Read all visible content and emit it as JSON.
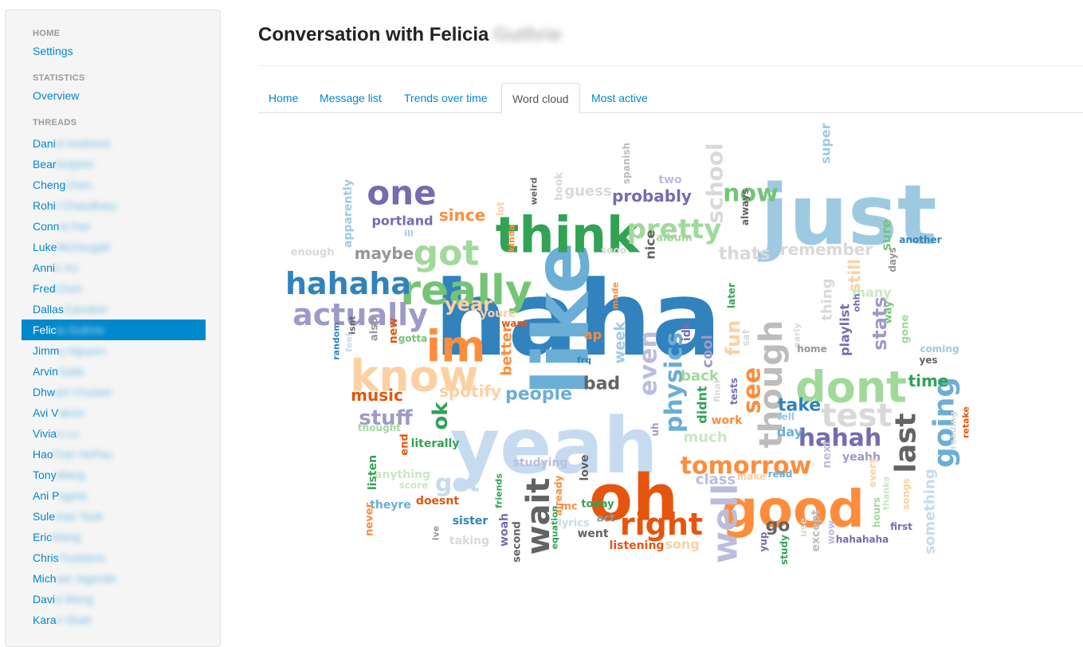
{
  "sidebar": {
    "home_header": "HOME",
    "settings": "Settings",
    "statistics_header": "STATISTICS",
    "overview": "Overview",
    "threads_header": "THREADS",
    "threads": [
      {
        "visible": "Dani",
        "hidden": "el Andrews"
      },
      {
        "visible": "Bear",
        "hidden": "Dolphin"
      },
      {
        "visible": "Cheng",
        "hidden": "Chen"
      },
      {
        "visible": "Rohi",
        "hidden": "t Chaudhary"
      },
      {
        "visible": "Conn",
        "hidden": "ie Fan"
      },
      {
        "visible": "Luke",
        "hidden": " McDougall"
      },
      {
        "visible": "Anni",
        "hidden": "e Xu"
      },
      {
        "visible": "Fred",
        "hidden": " Chen"
      },
      {
        "visible": "Dallas",
        "hidden": " Carraher"
      },
      {
        "visible": "Felic",
        "hidden": "ia Guthrie"
      },
      {
        "visible": "Jimm",
        "hidden": "y Nguyen"
      },
      {
        "visible": "Arvin",
        "hidden": " Galla"
      },
      {
        "visible": "Dhw",
        "hidden": "ani Chutani"
      },
      {
        "visible": "Avi V",
        "hidden": "aknin"
      },
      {
        "visible": "Vivia",
        "hidden": "n Lu"
      },
      {
        "visible": "Hao",
        "hidden": " Tran HoPau"
      },
      {
        "visible": "Tony",
        "hidden": " Wang"
      },
      {
        "visible": "Ani P",
        "hidden": "agnia"
      },
      {
        "visible": "Sule",
        "hidden": "man Tarik"
      },
      {
        "visible": "Eric",
        "hidden": " Wang"
      },
      {
        "visible": "Chris",
        "hidden": " Truebens"
      },
      {
        "visible": "Mich",
        "hidden": "ael Jagerski"
      },
      {
        "visible": "Davi",
        "hidden": "d Wong"
      },
      {
        "visible": "Kara",
        "hidden": "n Shah"
      }
    ],
    "active_index": 9
  },
  "page": {
    "title": "Conversation with Felicia",
    "title_hidden": "Guthrie"
  },
  "tabs": [
    {
      "label": "Home",
      "active": false
    },
    {
      "label": "Message list",
      "active": false
    },
    {
      "label": "Trends over time",
      "active": false
    },
    {
      "label": "Word cloud",
      "active": true
    },
    {
      "label": "Most active",
      "active": false
    }
  ],
  "colors": {
    "link": "#0088cc",
    "active_bg": "#0088cc",
    "cloud_blue": "#3182bd",
    "cloud_lightblue": "#9ecae1",
    "cloud_paleblue": "#c6dbef",
    "cloud_orange": "#e6550d",
    "cloud_lightorange": "#fd8d3c",
    "cloud_paleorange": "#fdd0a2",
    "cloud_green": "#31a354",
    "cloud_lightgreen": "#74c476",
    "cloud_palegreen": "#a1d99b",
    "cloud_purple": "#756bb1",
    "cloud_lightpurple": "#9e9ac8",
    "cloud_palepurple": "#bcbddc",
    "cloud_gray": "#636363",
    "cloud_lightgray": "#969696",
    "cloud_palegray": "#d9d9d9"
  },
  "word_cloud": [
    {
      "w": "haha",
      "c": "#3182bd",
      "s": 130,
      "r": 0
    },
    {
      "w": "just",
      "c": "#9ecae1",
      "s": 104,
      "r": 0
    },
    {
      "w": "yeah",
      "c": "#c6dbef",
      "s": 96,
      "r": 0
    },
    {
      "w": "like",
      "c": "#6baed6",
      "s": 96,
      "r": -90
    },
    {
      "w": "think",
      "c": "#31a354",
      "s": 62,
      "r": 0
    },
    {
      "w": "oh",
      "c": "#e6550d",
      "s": 80,
      "r": 0
    },
    {
      "w": "good",
      "c": "#fd8d3c",
      "s": 64,
      "r": 0
    },
    {
      "w": "really",
      "c": "#74c476",
      "s": 52,
      "r": 0
    },
    {
      "w": "know",
      "c": "#fdd0a2",
      "s": 54,
      "r": 0
    },
    {
      "w": "dont",
      "c": "#a1d99b",
      "s": 54,
      "r": 0
    },
    {
      "w": "im",
      "c": "#fd8d3c",
      "s": 54,
      "r": 0
    },
    {
      "w": "one",
      "c": "#756bb1",
      "s": 42,
      "r": 0
    },
    {
      "w": "got",
      "c": "#a1d99b",
      "s": 44,
      "r": 0
    },
    {
      "w": "hahaha",
      "c": "#3182bd",
      "s": 38,
      "r": 0
    },
    {
      "w": "actually",
      "c": "#9e9ac8",
      "s": 38,
      "r": 0
    },
    {
      "w": "pretty",
      "c": "#a1d99b",
      "s": 34,
      "r": 0
    },
    {
      "w": "right",
      "c": "#e6550d",
      "s": 38,
      "r": 0
    },
    {
      "w": "wait",
      "c": "#636363",
      "s": 40,
      "r": -90
    },
    {
      "w": "well",
      "c": "#bcbddc",
      "s": 44,
      "r": -90
    },
    {
      "w": "though",
      "c": "#bdbdbd",
      "s": 40,
      "r": -90
    },
    {
      "w": "test",
      "c": "#d9d9d9",
      "s": 40,
      "r": 0
    },
    {
      "w": "last",
      "c": "#636363",
      "s": 36,
      "r": -90
    },
    {
      "w": "going",
      "c": "#6baed6",
      "s": 36,
      "r": -90
    },
    {
      "w": "tomorrow",
      "c": "#fd8d3c",
      "s": 30,
      "r": 0
    },
    {
      "w": "physics",
      "c": "#6baed6",
      "s": 30,
      "r": -90
    },
    {
      "w": "even",
      "c": "#bcbddc",
      "s": 30,
      "r": -90
    },
    {
      "w": "see",
      "c": "#fd8d3c",
      "s": 30,
      "r": -90
    },
    {
      "w": "now",
      "c": "#74c476",
      "s": 30,
      "r": 0
    },
    {
      "w": "hahah",
      "c": "#756bb1",
      "s": 30,
      "r": 0
    },
    {
      "w": "get",
      "c": "#c6dbef",
      "s": 30,
      "r": 0
    },
    {
      "w": "school",
      "c": "#d9d9d9",
      "s": 28,
      "r": -90
    },
    {
      "w": "stuff",
      "c": "#9e9ac8",
      "s": 26,
      "r": 0
    },
    {
      "w": "take",
      "c": "#3182bd",
      "s": 22,
      "r": 0
    },
    {
      "w": "thats",
      "c": "#d9d9d9",
      "s": 22,
      "r": 0
    },
    {
      "w": "fun",
      "c": "#fdd0a2",
      "s": 24,
      "r": -90
    },
    {
      "w": "ok",
      "c": "#31a354",
      "s": 26,
      "r": -90
    },
    {
      "w": "people",
      "c": "#6baed6",
      "s": 22,
      "r": 0
    },
    {
      "w": "maybe",
      "c": "#969696",
      "s": 20,
      "r": 0
    },
    {
      "w": "probably",
      "c": "#756bb1",
      "s": 20,
      "r": 0
    },
    {
      "w": "remember",
      "c": "#d9d9d9",
      "s": 20,
      "r": 0
    },
    {
      "w": "year",
      "c": "#fdd0a2",
      "s": 24,
      "r": 0
    },
    {
      "w": "music",
      "c": "#e6550d",
      "s": 20,
      "r": 0
    },
    {
      "w": "spotify",
      "c": "#fdd0a2",
      "s": 20,
      "r": 0
    },
    {
      "w": "bad",
      "c": "#636363",
      "s": 22,
      "r": 0
    },
    {
      "w": "time",
      "c": "#31a354",
      "s": 20,
      "r": 0
    },
    {
      "w": "stats",
      "c": "#9e9ac8",
      "s": 24,
      "r": -90
    },
    {
      "w": "still",
      "c": "#fdd0a2",
      "s": 20,
      "r": -90
    },
    {
      "w": "since",
      "c": "#fd8d3c",
      "s": 20,
      "r": 0
    },
    {
      "w": "portland",
      "c": "#756bb1",
      "s": 16,
      "r": 0
    },
    {
      "w": "guess",
      "c": "#d9d9d9",
      "s": 18,
      "r": 0
    },
    {
      "w": "week",
      "c": "#9ecae1",
      "s": 18,
      "r": -90
    },
    {
      "w": "better",
      "c": "#fd8d3c",
      "s": 18,
      "r": -90
    },
    {
      "w": "class",
      "c": "#bcbddc",
      "s": 18,
      "r": 0
    },
    {
      "w": "back",
      "c": "#a1d99b",
      "s": 18,
      "r": 0
    },
    {
      "w": "much",
      "c": "#c7e9c0",
      "s": 18,
      "r": 0
    },
    {
      "w": "song",
      "c": "#fdd0a2",
      "s": 16,
      "r": 0
    },
    {
      "w": "cool",
      "c": "#9e9ac8",
      "s": 18,
      "r": -90
    },
    {
      "w": "thing",
      "c": "#d9d9d9",
      "s": 18,
      "r": -90
    },
    {
      "w": "many",
      "c": "#c7e9c0",
      "s": 16,
      "r": 0
    },
    {
      "w": "sure",
      "c": "#74c476",
      "s": 16,
      "r": -90
    },
    {
      "w": "playlist",
      "c": "#756bb1",
      "s": 16,
      "r": -90
    },
    {
      "w": "day",
      "c": "#6baed6",
      "s": 16,
      "r": 0
    },
    {
      "w": "go",
      "c": "#636363",
      "s": 22,
      "r": 0
    },
    {
      "w": "yeahh",
      "c": "#9e9ac8",
      "s": 14,
      "r": 0
    },
    {
      "w": "something",
      "c": "#c6dbef",
      "s": 18,
      "r": -90
    },
    {
      "w": "listening",
      "c": "#e6550d",
      "s": 14,
      "r": 0
    },
    {
      "w": "went",
      "c": "#636363",
      "s": 14,
      "r": 0
    },
    {
      "w": "studying",
      "c": "#bcbddc",
      "s": 14,
      "r": 0
    },
    {
      "w": "taking",
      "c": "#d9d9d9",
      "s": 14,
      "r": 0
    },
    {
      "w": "sister",
      "c": "#3182bd",
      "s": 14,
      "r": 0
    },
    {
      "w": "theyre",
      "c": "#6baed6",
      "s": 14,
      "r": 0
    },
    {
      "w": "doesnt",
      "c": "#e6550d",
      "s": 14,
      "r": 0
    },
    {
      "w": "literally",
      "c": "#31a354",
      "s": 14,
      "r": 0
    },
    {
      "w": "anything",
      "c": "#c7e9c0",
      "s": 14,
      "r": 0
    },
    {
      "w": "apparently",
      "c": "#9ecae1",
      "s": 14,
      "r": -90
    },
    {
      "w": "enough",
      "c": "#d9d9d9",
      "s": 13,
      "r": 0
    },
    {
      "w": "new",
      "c": "#e6550d",
      "s": 14,
      "r": -90
    },
    {
      "w": "also",
      "c": "#969696",
      "s": 13,
      "r": -90
    },
    {
      "w": "gotta",
      "c": "#74c476",
      "s": 12,
      "r": 0
    },
    {
      "w": "end",
      "c": "#e6550d",
      "s": 13,
      "r": -90
    },
    {
      "w": "listen",
      "c": "#31a354",
      "s": 14,
      "r": -90
    },
    {
      "w": "never",
      "c": "#fd8d3c",
      "s": 13,
      "r": -90
    },
    {
      "w": "thought",
      "c": "#a1d99b",
      "s": 12,
      "r": 0
    },
    {
      "w": "score",
      "c": "#c7e9c0",
      "s": 12,
      "r": 0
    },
    {
      "w": "woah",
      "c": "#756bb1",
      "s": 14,
      "r": -90
    },
    {
      "w": "second",
      "c": "#636363",
      "s": 13,
      "r": -90
    },
    {
      "w": "today",
      "c": "#31a354",
      "s": 13,
      "r": 0
    },
    {
      "w": "act",
      "c": "#969696",
      "s": 13,
      "r": 0
    },
    {
      "w": "lyrics",
      "c": "#c6dbef",
      "s": 13,
      "r": 0
    },
    {
      "w": "mc",
      "c": "#fd8d3c",
      "s": 13,
      "r": 0
    },
    {
      "w": "love",
      "c": "#636363",
      "s": 14,
      "r": -90
    },
    {
      "w": "already",
      "c": "#fd8d3c",
      "s": 12,
      "r": -90
    },
    {
      "w": "equation",
      "c": "#31a354",
      "s": 11,
      "r": -90
    },
    {
      "w": "friends",
      "c": "#31a354",
      "s": 11,
      "r": -90
    },
    {
      "w": "make",
      "c": "#fdd0a2",
      "s": 12,
      "r": 0
    },
    {
      "w": "read",
      "c": "#6baed6",
      "s": 12,
      "r": 0
    },
    {
      "w": "work",
      "c": "#fd8d3c",
      "s": 14,
      "r": 0
    },
    {
      "w": "tests",
      "c": "#756bb1",
      "s": 12,
      "r": -90
    },
    {
      "w": "didnt",
      "c": "#31a354",
      "s": 16,
      "r": -90
    },
    {
      "w": "uh",
      "c": "#9e9ac8",
      "s": 12,
      "r": -90
    },
    {
      "w": "idk",
      "c": "#756bb1",
      "s": 14,
      "r": -90
    },
    {
      "w": "ap",
      "c": "#fd8d3c",
      "s": 16,
      "r": 0
    },
    {
      "w": "want",
      "c": "#e6550d",
      "s": 12,
      "r": 0
    },
    {
      "w": "youre",
      "c": "#fdd0a2",
      "s": 14,
      "r": 0
    },
    {
      "w": "made",
      "c": "#fd8d3c",
      "s": 11,
      "r": -90
    },
    {
      "w": "sooo",
      "c": "#d9d9d9",
      "s": 12,
      "r": 0
    },
    {
      "w": "nice",
      "c": "#636363",
      "s": 16,
      "r": -90
    },
    {
      "w": "album",
      "c": "#a1d99b",
      "s": 13,
      "r": 0
    },
    {
      "w": "two",
      "c": "#bcbddc",
      "s": 14,
      "r": 0
    },
    {
      "w": "spanish",
      "c": "#bdbdbd",
      "s": 12,
      "r": -90
    },
    {
      "w": "book",
      "c": "#d9d9d9",
      "s": 13,
      "r": -90
    },
    {
      "w": "weird",
      "c": "#636363",
      "s": 11,
      "r": -90
    },
    {
      "w": "lot",
      "c": "#fdd0a2",
      "s": 12,
      "r": -90
    },
    {
      "w": "kinda",
      "c": "#fd8d3c",
      "s": 11,
      "r": -90
    },
    {
      "w": "always",
      "c": "#636363",
      "s": 12,
      "r": -90
    },
    {
      "w": "later",
      "c": "#31a354",
      "s": 12,
      "r": -90
    },
    {
      "w": "final",
      "c": "#d9d9d9",
      "s": 11,
      "r": -90
    },
    {
      "w": "sat",
      "c": "#d9d9d9",
      "s": 12,
      "r": -90
    },
    {
      "w": "early",
      "c": "#d9d9d9",
      "s": 11,
      "r": -90
    },
    {
      "w": "home",
      "c": "#969696",
      "s": 12,
      "r": 0
    },
    {
      "w": "tell",
      "c": "#9ecae1",
      "s": 12,
      "r": 0
    },
    {
      "w": "ohh",
      "c": "#756bb1",
      "s": 11,
      "r": -90
    },
    {
      "w": "way",
      "c": "#74c476",
      "s": 13,
      "r": -90
    },
    {
      "w": "gone",
      "c": "#a1d99b",
      "s": 13,
      "r": -90
    },
    {
      "w": "days",
      "c": "#969696",
      "s": 12,
      "r": -90
    },
    {
      "w": "another",
      "c": "#3182bd",
      "s": 12,
      "r": 0
    },
    {
      "w": "super",
      "c": "#9ecae1",
      "s": 16,
      "r": -90
    },
    {
      "w": "coming",
      "c": "#9ecae1",
      "s": 12,
      "r": 0
    },
    {
      "w": "yes",
      "c": "#636363",
      "s": 12,
      "r": 0
    },
    {
      "w": "reading",
      "c": "#d9d9d9",
      "s": 11,
      "r": -90
    },
    {
      "w": "retake",
      "c": "#e6550d",
      "s": 11,
      "r": -90
    },
    {
      "w": "next",
      "c": "#bcbddc",
      "s": 14,
      "r": -90
    },
    {
      "w": "every",
      "c": "#fdd0a2",
      "s": 12,
      "r": -90
    },
    {
      "w": "thanks",
      "c": "#c7e9c0",
      "s": 11,
      "r": -90
    },
    {
      "w": "songs",
      "c": "#fdd0a2",
      "s": 12,
      "r": -90
    },
    {
      "w": "hours",
      "c": "#a1d99b",
      "s": 12,
      "r": -90
    },
    {
      "w": "first",
      "c": "#756bb1",
      "s": 12,
      "r": 0
    },
    {
      "w": "hahahaha",
      "c": "#756bb1",
      "s": 12,
      "r": 0
    },
    {
      "w": "wow",
      "c": "#bcbddc",
      "s": 12,
      "r": -90
    },
    {
      "w": "except",
      "c": "#bdbdbd",
      "s": 14,
      "r": -90
    },
    {
      "w": "use",
      "c": "#d9d9d9",
      "s": 12,
      "r": -90
    },
    {
      "w": "study",
      "c": "#31a354",
      "s": 12,
      "r": -90
    },
    {
      "w": "yup",
      "c": "#756bb1",
      "s": 12,
      "r": -90
    },
    {
      "w": "random",
      "c": "#3182bd",
      "s": 11,
      "r": -90
    },
    {
      "w": "feel",
      "c": "#c6dbef",
      "s": 11,
      "r": -90
    },
    {
      "w": "isnt",
      "c": "#636363",
      "s": 11,
      "r": -90
    },
    {
      "w": "frq",
      "c": "#3182bd",
      "s": 11,
      "r": 0
    },
    {
      "w": "lve",
      "c": "#969696",
      "s": 11,
      "r": -90
    },
    {
      "w": "ill",
      "c": "#9ecae1",
      "s": 11,
      "r": 0
    }
  ]
}
